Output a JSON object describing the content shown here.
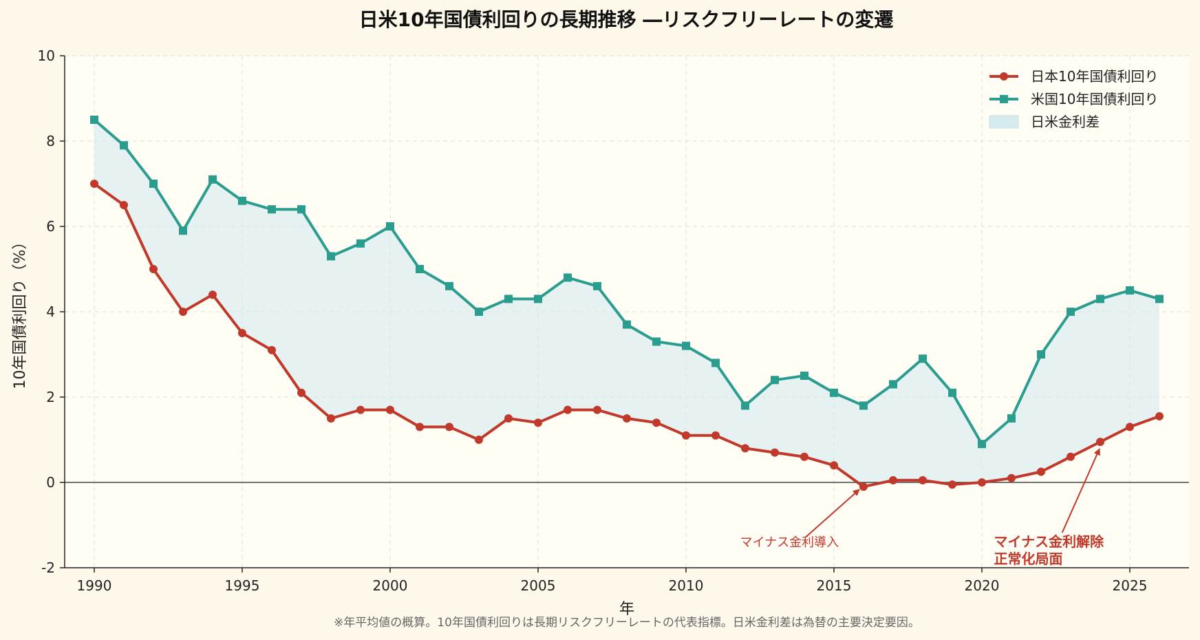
{
  "chart_data": {
    "type": "line",
    "title": "日米10年国債利回りの長期推移 ―リスクフリーレートの変遷",
    "xlabel": "年",
    "ylabel": "10年国債利回り（%）",
    "footnote": "※年平均値の概算。10年国債利回りは長期リスクフリーレートの代表指標。日米金利差は為替の主要決定要因。",
    "xlim": [
      1989,
      2027
    ],
    "ylim": [
      -2,
      10
    ],
    "x_ticks": [
      1990,
      1995,
      2000,
      2005,
      2010,
      2015,
      2020,
      2025
    ],
    "y_ticks": [
      -2,
      0,
      2,
      4,
      6,
      8,
      10
    ],
    "grid": true,
    "legend_position": "top-right",
    "x": [
      1990,
      1991,
      1992,
      1993,
      1994,
      1995,
      1996,
      1997,
      1998,
      1999,
      2000,
      2001,
      2002,
      2003,
      2004,
      2005,
      2006,
      2007,
      2008,
      2009,
      2010,
      2011,
      2012,
      2013,
      2014,
      2015,
      2016,
      2017,
      2018,
      2019,
      2020,
      2021,
      2022,
      2023,
      2024,
      2025,
      2026
    ],
    "series": [
      {
        "name": "日本10年国債利回り",
        "color": "#c0392b",
        "marker": "circle",
        "values": [
          7.0,
          6.5,
          5.0,
          4.0,
          4.4,
          3.5,
          3.1,
          2.1,
          1.5,
          1.7,
          1.7,
          1.3,
          1.3,
          1.0,
          1.5,
          1.4,
          1.7,
          1.7,
          1.5,
          1.4,
          1.1,
          1.1,
          0.8,
          0.7,
          0.6,
          0.4,
          -0.1,
          0.05,
          0.05,
          -0.05,
          0.0,
          0.1,
          0.25,
          0.6,
          0.95,
          1.3,
          1.55
        ]
      },
      {
        "name": "米国10年国債利回り",
        "color": "#2a9d8f",
        "marker": "square",
        "values": [
          8.5,
          7.9,
          7.0,
          5.9,
          7.1,
          6.6,
          6.4,
          6.4,
          5.3,
          5.6,
          6.0,
          5.0,
          4.6,
          4.0,
          4.3,
          4.3,
          4.8,
          4.6,
          3.7,
          3.3,
          3.2,
          2.8,
          1.8,
          2.4,
          2.5,
          2.1,
          1.8,
          2.3,
          2.9,
          2.1,
          0.9,
          1.5,
          3.0,
          4.0,
          4.3,
          4.5,
          4.3
        ]
      }
    ],
    "fill_legend": {
      "name": "日米金利差",
      "color": "#d6ebee"
    },
    "annotations": [
      {
        "lines": [
          "マイナス金利導入"
        ],
        "x": 2016,
        "y": -0.1,
        "text_x": 2013.5,
        "text_y": -1.5,
        "style": "normal"
      },
      {
        "lines": [
          "マイナス金利解除",
          "正常化局面"
        ],
        "x": 2024,
        "y": 0.95,
        "text_x": 2020.5,
        "text_y": -1.5,
        "style": "bold"
      }
    ]
  }
}
